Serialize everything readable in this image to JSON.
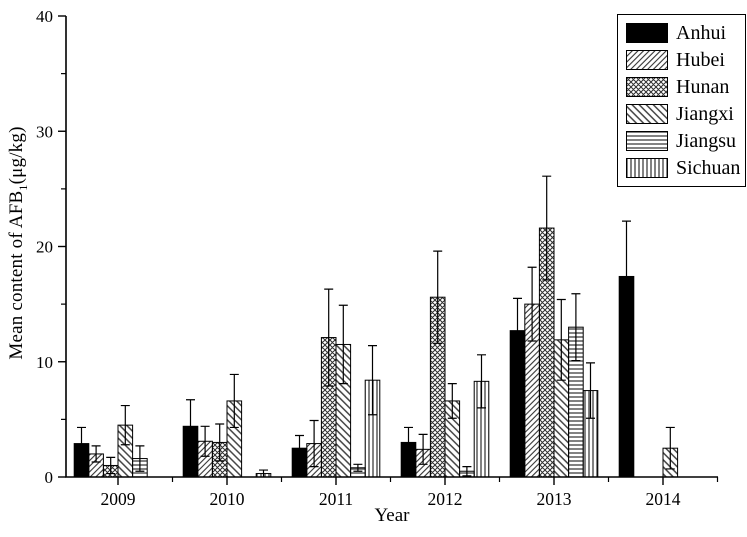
{
  "chart_data": {
    "type": "bar",
    "title": "",
    "xlabel": "Year",
    "ylabel": "Mean content of AFB1(μg/kg)",
    "ylabel_prefix": "Mean content of AFB",
    "ylabel_subscript": "1",
    "ylabel_suffix": "(μg/kg)",
    "categories": [
      "2009",
      "2010",
      "2011",
      "2012",
      "2013",
      "2014"
    ],
    "ylim": [
      0,
      40
    ],
    "ytick_major": [
      0,
      10,
      20,
      30,
      40
    ],
    "ytick_minor": [
      5,
      15,
      25,
      35
    ],
    "grid": "off",
    "legend_position": "top-right",
    "error_bars": "upper-and-lower-caps",
    "series": [
      {
        "name": "Anhui",
        "pattern": "solid",
        "values": [
          2.9,
          4.4,
          2.5,
          3.0,
          12.7,
          17.4
        ],
        "errors": [
          1.4,
          2.3,
          1.1,
          1.3,
          2.8,
          4.8
        ]
      },
      {
        "name": "Hubei",
        "pattern": "diagonal-forward",
        "values": [
          2.0,
          3.1,
          2.9,
          2.4,
          15.0,
          0
        ],
        "errors": [
          0.7,
          1.3,
          2.0,
          1.3,
          3.2,
          0
        ]
      },
      {
        "name": "Hunan",
        "pattern": "crosshatch",
        "values": [
          1.0,
          3.0,
          12.1,
          15.6,
          21.6,
          0
        ],
        "errors": [
          0.7,
          1.6,
          4.2,
          4.0,
          4.5,
          0
        ]
      },
      {
        "name": "Jiangxi",
        "pattern": "diagonal-back",
        "values": [
          4.5,
          6.6,
          11.5,
          6.6,
          11.9,
          2.5
        ],
        "errors": [
          1.7,
          2.3,
          3.4,
          1.5,
          3.5,
          1.8
        ]
      },
      {
        "name": "Jiangsu",
        "pattern": "horizontal",
        "values": [
          1.6,
          0,
          0.8,
          0.5,
          13.0,
          0
        ],
        "errors": [
          1.1,
          0,
          0.3,
          0.4,
          2.9,
          0
        ]
      },
      {
        "name": "Sichuan",
        "pattern": "vertical",
        "values": [
          0,
          0.3,
          8.4,
          8.3,
          7.5,
          0
        ],
        "errors": [
          0,
          0.3,
          3.0,
          2.3,
          2.4,
          0
        ]
      }
    ],
    "colors": {
      "axis": "#000000",
      "bar_solid": "#000000",
      "hatch_line": "#333333",
      "background": "#ffffff"
    }
  }
}
